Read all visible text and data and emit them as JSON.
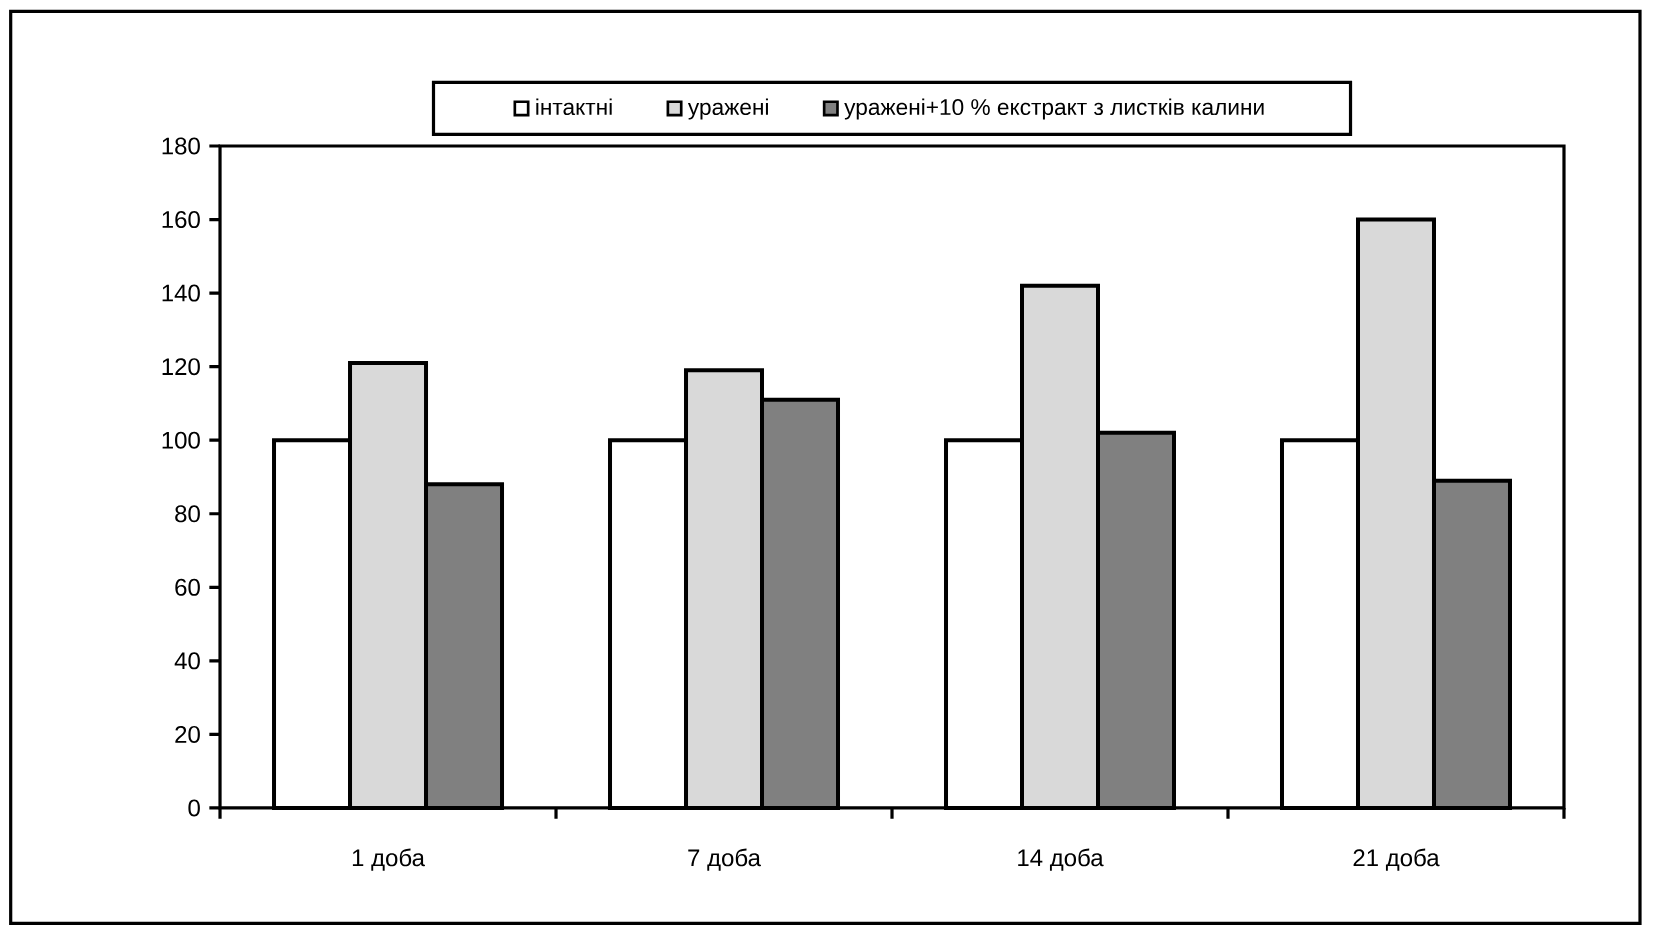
{
  "chart_data": {
    "type": "bar",
    "categories": [
      "1 доба",
      "7 доба",
      "14 доба",
      "21 доба"
    ],
    "series": [
      {
        "name": "інтактні",
        "color": "#ffffff",
        "values": [
          100,
          100,
          100,
          100
        ]
      },
      {
        "name": "уражені",
        "color": "#d9d9d9",
        "values": [
          121,
          119,
          142,
          160
        ]
      },
      {
        "name": "уражені+10 % екстракт з листків калини",
        "color": "#808080",
        "values": [
          88,
          111,
          102,
          89
        ]
      }
    ],
    "ylim": [
      0,
      180
    ],
    "yticks": [
      0,
      20,
      40,
      60,
      80,
      100,
      120,
      140,
      160,
      180
    ],
    "grid": false,
    "legend": "top"
  }
}
